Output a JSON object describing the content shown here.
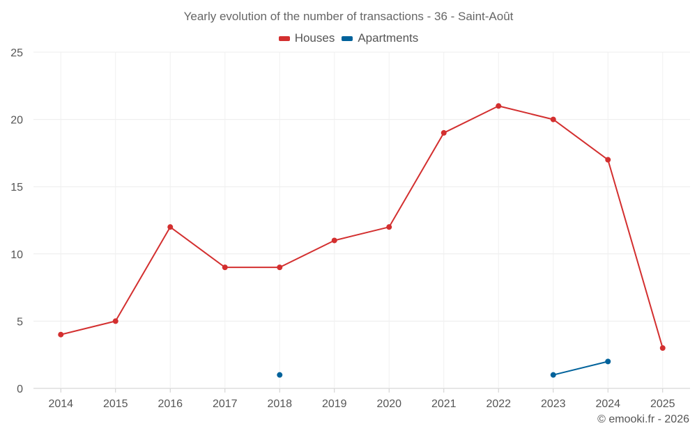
{
  "chart_data": {
    "type": "line",
    "title": "Yearly evolution of the number of transactions - 36 - Saint-Août",
    "xlabel": "",
    "ylabel": "",
    "categories": [
      "2014",
      "2015",
      "2016",
      "2017",
      "2018",
      "2019",
      "2020",
      "2021",
      "2022",
      "2023",
      "2024",
      "2025"
    ],
    "ylim": [
      0,
      25
    ],
    "yticks": [
      0,
      5,
      10,
      15,
      20,
      25
    ],
    "grid": true,
    "legend_position": "top-center",
    "series": [
      {
        "name": "Houses",
        "color": "#d32f2f",
        "values": [
          4,
          5,
          12,
          9,
          9,
          11,
          12,
          19,
          21,
          20,
          17,
          3
        ]
      },
      {
        "name": "Apartments",
        "color": "#00629b",
        "values": [
          null,
          null,
          null,
          null,
          1,
          null,
          null,
          null,
          null,
          1,
          2,
          null
        ]
      }
    ]
  },
  "credit": "© emooki.fr - 2026"
}
